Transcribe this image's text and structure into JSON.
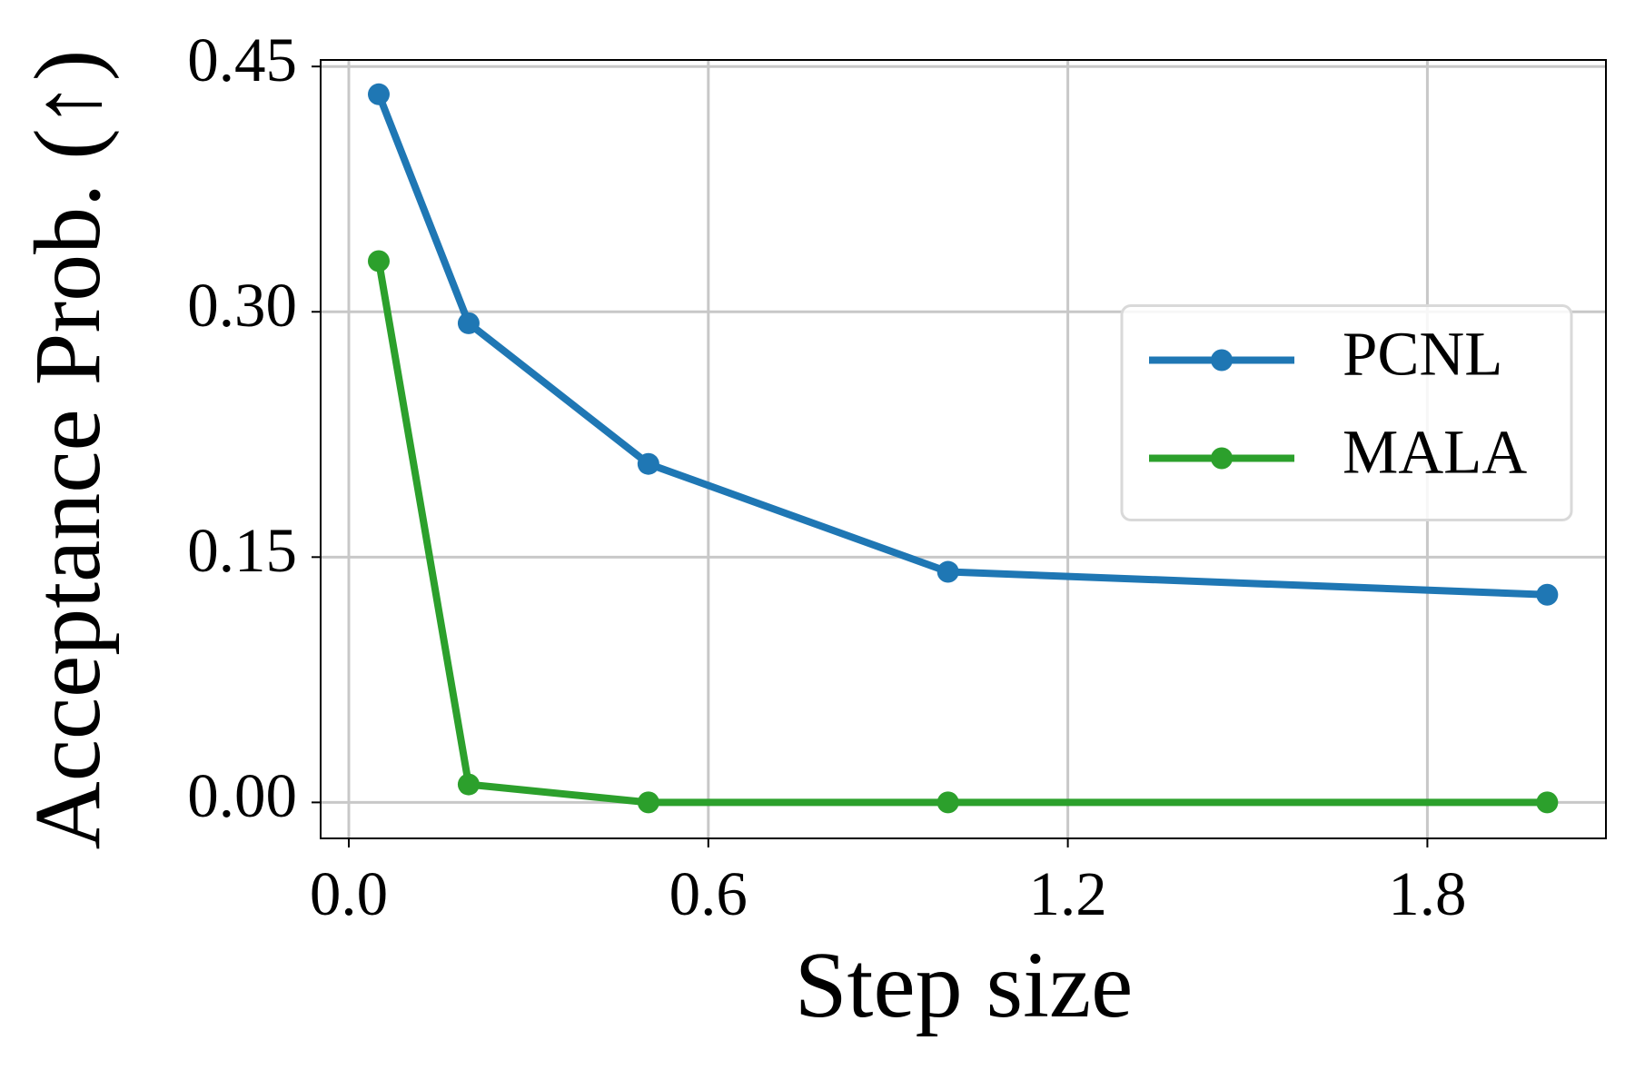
{
  "chart_data": {
    "type": "line",
    "x_label": "Step size",
    "y_label": "Acceptance Prob. (↑)",
    "x": [
      0.05,
      0.2,
      0.5,
      1.0,
      2.0
    ],
    "series": [
      {
        "name": "PCNL",
        "color": "#1f77b4",
        "values": [
          0.433,
          0.293,
          0.207,
          0.141,
          0.127
        ]
      },
      {
        "name": "MALA",
        "color": "#2ca02c",
        "values": [
          0.331,
          0.011,
          0,
          0,
          0
        ]
      }
    ],
    "xlim": [
      -0.047,
      2.098
    ],
    "ylim": [
      -0.022,
      0.454
    ],
    "xticks": [
      {
        "value": 0,
        "label": "0.0"
      },
      0.6,
      1.2,
      1.8
    ],
    "yticks": [
      {
        "value": 0,
        "label": "0.00"
      },
      0.15,
      {
        "value": 0.3,
        "label": "0.30"
      },
      0.45
    ],
    "grid": true,
    "legend": "center right"
  }
}
